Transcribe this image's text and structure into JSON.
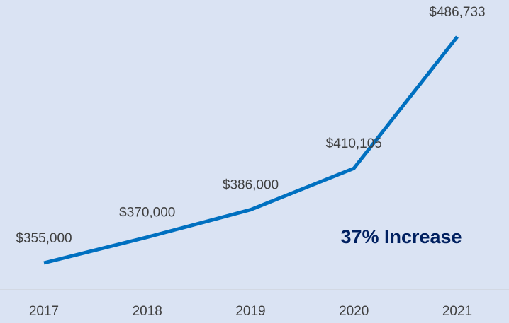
{
  "chart_data": {
    "type": "line",
    "annotation": "37% Increase",
    "categories": [
      "2017",
      "2018",
      "2019",
      "2020",
      "2021"
    ],
    "values": [
      355000,
      370000,
      386000,
      410105,
      486733
    ],
    "value_labels": [
      "$355,000",
      "$370,000",
      "$386,000",
      "$410,105",
      "$486,733"
    ],
    "color": "#0070c0"
  }
}
